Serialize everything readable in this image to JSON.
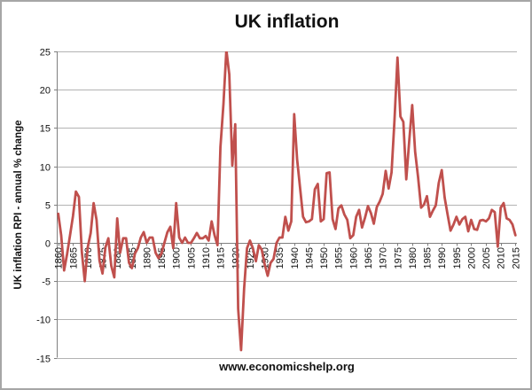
{
  "title": "UK inflation",
  "footer": "www.economicshelp.org",
  "colors": {
    "line": "#C0504D",
    "gridline": "#B3B3B3",
    "axis": "#7F7F7F",
    "border": "#A6A6A6",
    "text": "#111111",
    "background": "#FFFFFF"
  },
  "chart_data": {
    "type": "line",
    "title": "UK inflation",
    "xlabel": "",
    "ylabel": "UK inflation RPI - annual % change",
    "x_start_year": 1860,
    "x_end_year": 2015,
    "x_tick_interval": 5,
    "x_ticks": [
      1860,
      1865,
      1870,
      1875,
      1880,
      1885,
      1890,
      1895,
      1900,
      1905,
      1910,
      1915,
      1920,
      1925,
      1930,
      1935,
      1940,
      1945,
      1950,
      1955,
      1960,
      1965,
      1970,
      1975,
      1980,
      1985,
      1990,
      1995,
      2000,
      2005,
      2010,
      2015
    ],
    "y_ticks": [
      -15,
      -10,
      -5,
      0,
      5,
      10,
      15,
      20,
      25
    ],
    "ylim": [
      -15,
      25
    ],
    "grid": true,
    "legend": "none",
    "line_color": "#C0504D",
    "values": [
      3.8,
      1.0,
      -3.6,
      -1.5,
      1.0,
      3.5,
      6.7,
      6.0,
      -1.2,
      -5.0,
      -0.6,
      1.3,
      5.2,
      3.0,
      -2.3,
      -4.0,
      -0.6,
      0.6,
      -3.0,
      -4.5,
      3.2,
      -1.3,
      0.6,
      0.6,
      -2.6,
      -3.3,
      -1.4,
      -0.7,
      0.7,
      1.4,
      0.0,
      0.7,
      0.7,
      -1.3,
      -2.0,
      -1.4,
      0.0,
      1.4,
      2.1,
      -0.7,
      5.2,
      0.7,
      0.0,
      0.7,
      0.0,
      0.0,
      0.6,
      1.3,
      0.6,
      0.6,
      0.9,
      0.3,
      2.8,
      1.0,
      -0.3,
      12.5,
      18.1,
      25.2,
      22.0,
      10.1,
      15.5,
      -8.6,
      -14.0,
      -6.0,
      -0.7,
      0.3,
      -0.7,
      -2.4,
      -0.3,
      -0.9,
      -2.8,
      -4.3,
      -2.6,
      -2.1,
      0.0,
      0.7,
      0.7,
      3.4,
      1.6,
      2.8,
      16.8,
      10.9,
      7.1,
      3.4,
      2.7,
      2.8,
      3.1,
      7.0,
      7.7,
      2.8,
      3.1,
      9.1,
      9.2,
      3.1,
      1.8,
      4.5,
      4.9,
      3.7,
      3.0,
      0.6,
      1.0,
      3.4,
      4.3,
      2.0,
      3.3,
      4.8,
      3.9,
      2.5,
      4.7,
      5.4,
      6.4,
      9.4,
      7.1,
      9.2,
      16.0,
      24.2,
      16.5,
      15.8,
      8.3,
      13.4,
      18.0,
      11.9,
      8.6,
      4.6,
      5.0,
      6.1,
      3.4,
      4.2,
      4.9,
      7.8,
      9.5,
      5.9,
      3.7,
      1.6,
      2.4,
      3.4,
      2.4,
      3.1,
      3.4,
      1.5,
      3.0,
      1.8,
      1.7,
      2.9,
      3.0,
      2.8,
      3.2,
      4.3,
      4.0,
      -0.5,
      4.6,
      5.2,
      3.2,
      3.0,
      2.4,
      1.0
    ]
  }
}
